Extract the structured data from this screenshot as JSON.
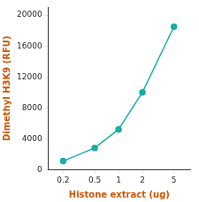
{
  "chart_data": {
    "type": "line",
    "xlabel": "Histone extract (ug)",
    "ylabel": "Dimethyl H3K9 (RFU)",
    "x": [
      0.2,
      0.5,
      1.0,
      2.0,
      5.0
    ],
    "values": [
      1100,
      2800,
      5200,
      10000,
      18500
    ],
    "xlim": [
      0.13,
      8.0
    ],
    "ylim": [
      0,
      21000
    ],
    "xticks": [
      0.2,
      0.5,
      1,
      2,
      5
    ],
    "yticks": [
      0,
      4000,
      8000,
      12000,
      16000,
      20000
    ],
    "log": "x",
    "grid": false,
    "color": "#1aada4",
    "marker": "o"
  }
}
